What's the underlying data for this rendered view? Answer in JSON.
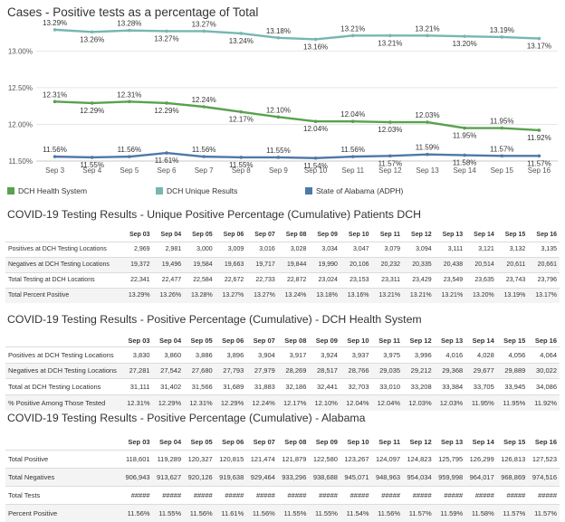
{
  "chart_data": {
    "type": "line",
    "title": "Cases - Positive tests as a percentage of Total",
    "x": [
      "Sep 3",
      "Sep 4",
      "Sep 5",
      "Sep 6",
      "Sep 7",
      "Sep 8",
      "Sep 9",
      "Sep 10",
      "Sep 11",
      "Sep 12",
      "Sep 13",
      "Sep 14",
      "Sep 15",
      "Sep 16"
    ],
    "ylim": [
      11.5,
      13.35
    ],
    "yticks": [
      "13.00%",
      "12.50%",
      "12.00%",
      "11.50%"
    ],
    "grid": true,
    "legend_position": "bottom",
    "series": [
      {
        "name": "DCH Health System",
        "color": "#59a14f",
        "values": [
          12.31,
          12.29,
          12.31,
          12.29,
          12.24,
          12.17,
          12.1,
          12.04,
          12.04,
          12.03,
          12.03,
          11.95,
          11.95,
          11.92
        ],
        "labels": [
          "12.31%",
          "12.29%",
          "12.31%",
          "12.29%",
          "12.24%",
          "12.17%",
          "12.10%",
          "12.04%",
          "12.04%",
          "12.03%",
          "12.03%",
          "11.95%",
          "11.95%",
          "11.92%"
        ]
      },
      {
        "name": "DCH Unique Results",
        "color": "#76b7b2",
        "values": [
          13.29,
          13.26,
          13.28,
          13.27,
          13.27,
          13.24,
          13.18,
          13.16,
          13.21,
          13.21,
          13.21,
          13.2,
          13.19,
          13.17
        ],
        "labels": [
          "13.29%",
          "13.26%",
          "13.28%",
          "13.27%",
          "13.27%",
          "13.24%",
          "13.18%",
          "13.16%",
          "13.21%",
          "13.21%",
          "13.21%",
          "13.20%",
          "13.19%",
          "13.17%"
        ]
      },
      {
        "name": "State of Alabama (ADPH)",
        "color": "#4e79a7",
        "values": [
          11.56,
          11.55,
          11.56,
          11.61,
          11.56,
          11.55,
          11.55,
          11.54,
          11.56,
          11.57,
          11.59,
          11.58,
          11.57,
          11.57
        ],
        "labels": [
          "11.56%",
          "11.55%",
          "11.56%",
          "11.61%",
          "11.56%",
          "11.55%",
          "11.55%",
          "11.54%",
          "11.56%",
          "11.57%",
          "11.59%",
          "11.58%",
          "11.57%",
          "11.57%"
        ]
      }
    ]
  },
  "tables": [
    {
      "title": "COVID-19 Testing Results - Unique Positive Percentage (Cumulative) Patients DCH",
      "columns": [
        "Sep 03",
        "Sep 04",
        "Sep 05",
        "Sep 06",
        "Sep 07",
        "Sep 08",
        "Sep 09",
        "Sep 10",
        "Sep 11",
        "Sep 12",
        "Sep 13",
        "Sep 14",
        "Sep 15",
        "Sep 16"
      ],
      "rows": [
        {
          "label": "Positives at DCH Testing Locations",
          "values": [
            "2,969",
            "2,981",
            "3,000",
            "3,009",
            "3,016",
            "3,028",
            "3,034",
            "3,047",
            "3,079",
            "3,094",
            "3,111",
            "3,121",
            "3,132",
            "3,135"
          ]
        },
        {
          "label": "Negatives at DCH Testing Locations",
          "values": [
            "19,372",
            "19,496",
            "19,584",
            "19,663",
            "19,717",
            "19,844",
            "19,990",
            "20,106",
            "20,232",
            "20,335",
            "20,438",
            "20,514",
            "20,611",
            "20,661"
          ]
        },
        {
          "label": "Total Testing at DCH Locations",
          "values": [
            "22,341",
            "22,477",
            "22,584",
            "22,672",
            "22,733",
            "22,872",
            "23,024",
            "23,153",
            "23,311",
            "23,429",
            "23,549",
            "23,635",
            "23,743",
            "23,796"
          ]
        },
        {
          "label": "Total Percent Positive",
          "values": [
            "13.29%",
            "13.26%",
            "13.28%",
            "13.27%",
            "13.27%",
            "13.24%",
            "13.18%",
            "13.16%",
            "13.21%",
            "13.21%",
            "13.21%",
            "13.20%",
            "13.19%",
            "13.17%"
          ]
        }
      ]
    },
    {
      "title": "COVID-19 Testing Results - Positive Percentage (Cumulative) - DCH Health System",
      "columns": [
        "Sep 03",
        "Sep 04",
        "Sep 05",
        "Sep 06",
        "Sep 07",
        "Sep 08",
        "Sep 09",
        "Sep 10",
        "Sep 11",
        "Sep 12",
        "Sep 13",
        "Sep 14",
        "Sep 15",
        "Sep 16"
      ],
      "rows": [
        {
          "label": "Positives at DCH Testing Locations",
          "values": [
            "3,830",
            "3,860",
            "3,886",
            "3,896",
            "3,904",
            "3,917",
            "3,924",
            "3,937",
            "3,975",
            "3,996",
            "4,016",
            "4,028",
            "4,056",
            "4,064"
          ]
        },
        {
          "label": "Negatives at DCH Testing Locations",
          "values": [
            "27,281",
            "27,542",
            "27,680",
            "27,793",
            "27,979",
            "28,269",
            "28,517",
            "28,766",
            "29,035",
            "29,212",
            "29,368",
            "29,677",
            "29,889",
            "30,022"
          ]
        },
        {
          "label": "Total at DCH Testing Locations",
          "values": [
            "31,111",
            "31,402",
            "31,566",
            "31,689",
            "31,883",
            "32,186",
            "32,441",
            "32,703",
            "33,010",
            "33,208",
            "33,384",
            "33,705",
            "33,945",
            "34,086"
          ]
        },
        {
          "label": "% Positive Among Those Tested",
          "values": [
            "12.31%",
            "12.29%",
            "12.31%",
            "12.29%",
            "12.24%",
            "12.17%",
            "12.10%",
            "12.04%",
            "12.04%",
            "12.03%",
            "12.03%",
            "11.95%",
            "11.95%",
            "11.92%"
          ]
        }
      ]
    },
    {
      "title": "COVID-19 Testing Results - Positive Percentage (Cumulative) - Alabama",
      "columns": [
        "Sep 03",
        "Sep 04",
        "Sep 05",
        "Sep 06",
        "Sep 07",
        "Sep 08",
        "Sep 09",
        "Sep 10",
        "Sep 11",
        "Sep 12",
        "Sep 13",
        "Sep 14",
        "Sep 15",
        "Sep 16"
      ],
      "rows": [
        {
          "label": "Total Positive",
          "values": [
            "118,601",
            "119,289",
            "120,327",
            "120,815",
            "121,474",
            "121,879",
            "122,580",
            "123,267",
            "124,097",
            "124,823",
            "125,795",
            "126,299",
            "126,813",
            "127,523"
          ]
        },
        {
          "label": "Total Negatives",
          "values": [
            "906,943",
            "913,627",
            "920,126",
            "919,638",
            "929,464",
            "933,296",
            "938,688",
            "945,071",
            "948,963",
            "954,034",
            "959,998",
            "964,017",
            "968,869",
            "974,516"
          ]
        },
        {
          "label": "Total Tests",
          "values": [
            "#####",
            "#####",
            "#####",
            "#####",
            "#####",
            "#####",
            "#####",
            "#####",
            "#####",
            "#####",
            "#####",
            "#####",
            "#####",
            "#####"
          ]
        },
        {
          "label": "Percent Positive",
          "values": [
            "11.56%",
            "11.55%",
            "11.56%",
            "11.61%",
            "11.56%",
            "11.55%",
            "11.55%",
            "11.54%",
            "11.56%",
            "11.57%",
            "11.59%",
            "11.58%",
            "11.57%",
            "11.57%"
          ]
        }
      ]
    }
  ]
}
